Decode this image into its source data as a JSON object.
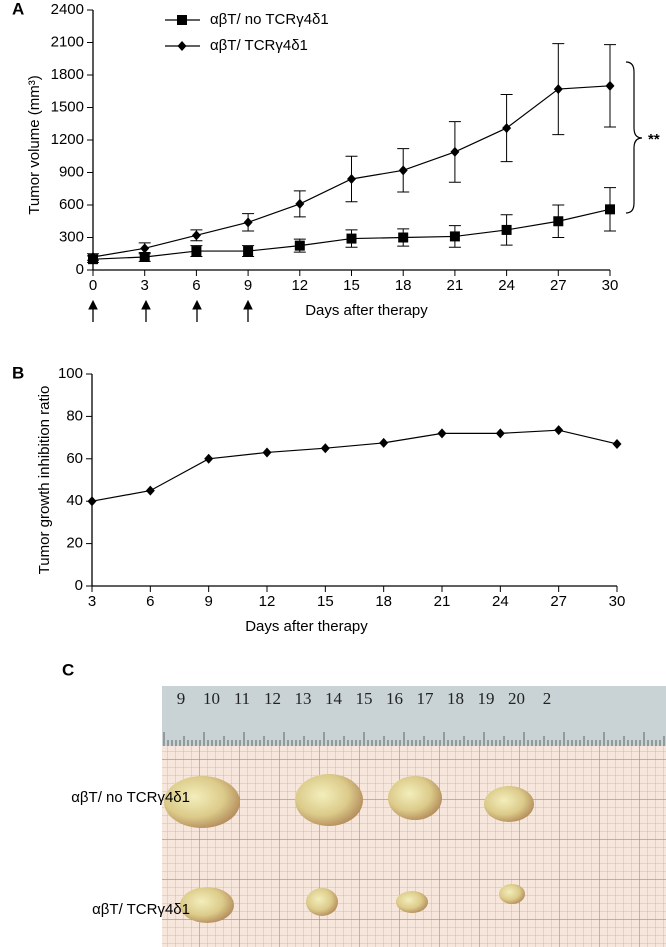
{
  "chart_data": [
    {
      "type": "line",
      "panel_label": "A",
      "x_label": "Days after therapy",
      "y_label": "Tumor volume (mm³)",
      "x": [
        0,
        3,
        6,
        9,
        12,
        15,
        18,
        21,
        24,
        27,
        30
      ],
      "xlim": [
        0,
        30
      ],
      "xticks": [
        0,
        3,
        6,
        9,
        12,
        15,
        18,
        21,
        24,
        27,
        30
      ],
      "ylim": [
        0,
        2400
      ],
      "yticks": [
        0,
        300,
        600,
        900,
        1200,
        1500,
        1800,
        2100,
        2400
      ],
      "legend": "top-left",
      "annotation": "**",
      "series": [
        {
          "name": "αβT/ no TCRγ4δ1",
          "color": "#000000",
          "marker": "square",
          "values": [
            100,
            120,
            175,
            175,
            225,
            290,
            300,
            310,
            370,
            450,
            560
          ],
          "errors": [
            30,
            40,
            50,
            50,
            60,
            80,
            80,
            100,
            140,
            150,
            200
          ]
        },
        {
          "name": "αβT/ TCRγ4δ1",
          "color": "#000000",
          "marker": "diamond",
          "values": [
            120,
            200,
            320,
            440,
            610,
            840,
            920,
            1090,
            1310,
            1670,
            1700
          ],
          "errors": [
            30,
            50,
            50,
            80,
            120,
            210,
            200,
            280,
            310,
            420,
            380
          ]
        }
      ]
    },
    {
      "type": "line",
      "panel_label": "B",
      "x_label": "Days after therapy",
      "y_label": "Tumor growth inhibition ratio",
      "x": [
        3,
        6,
        9,
        12,
        15,
        18,
        21,
        24,
        27,
        30
      ],
      "xlim": [
        3,
        30
      ],
      "xticks": [
        3,
        6,
        9,
        12,
        15,
        18,
        21,
        24,
        27,
        30
      ],
      "ylim": [
        0,
        100
      ],
      "yticks": [
        0,
        20,
        40,
        60,
        80,
        100
      ],
      "series": [
        {
          "color": "#000000",
          "marker": "diamond",
          "values": [
            40,
            45,
            60,
            63,
            65,
            67.5,
            72,
            72,
            73.5,
            67
          ]
        }
      ]
    }
  ],
  "photo": {
    "panel_label": "C",
    "ruler": [
      "9",
      "10",
      "11",
      "12",
      "13",
      "14",
      "15",
      "16",
      "17",
      "18",
      "19",
      "20",
      "2"
    ],
    "rows": [
      "αβT/ no TCRγ4δ1",
      "αβT/ TCRγ4δ1"
    ]
  }
}
